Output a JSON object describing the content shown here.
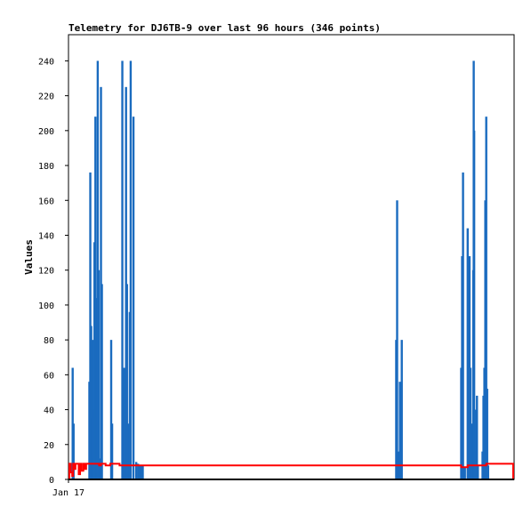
{
  "chart_data": {
    "type": "bar",
    "title": "Telemetry for DJ6TB-9 over last 96 hours (346 points)",
    "xlabel": "",
    "ylabel": "Values",
    "ylim": [
      0,
      255
    ],
    "xlim": [
      0,
      96
    ],
    "x_tick_labels": [
      "Jan 17"
    ],
    "y_ticks": [
      0,
      20,
      40,
      60,
      80,
      100,
      120,
      140,
      160,
      180,
      200,
      220,
      240
    ],
    "grid": false,
    "colors": {
      "bars": "#1a6bbf",
      "line": "#ff0000",
      "axis": "#000000"
    },
    "series": [
      {
        "type": "bar",
        "x": [
          0.9,
          1.1,
          4.5,
          4.7,
          4.9,
          5.1,
          5.2,
          5.3,
          5.4,
          5.6,
          5.8,
          6.0,
          6.1,
          6.3,
          6.5,
          6.6,
          6.8,
          7.0,
          7.2,
          9.2,
          9.4,
          11.6,
          11.8,
          12.0,
          12.2,
          12.4,
          12.6,
          12.8,
          13.0,
          13.2,
          13.4,
          14.0,
          14.6,
          15.0,
          15.2,
          15.4,
          15.6,
          15.8,
          16.0,
          70.6,
          70.8,
          71.0,
          71.4,
          71.8,
          84.6,
          84.8,
          85.0,
          85.4,
          86.0,
          86.2,
          86.4,
          86.6,
          86.8,
          87.0,
          87.2,
          87.3,
          87.4,
          87.6,
          87.8,
          88.0,
          88.2,
          89.2,
          89.4,
          89.6,
          89.8,
          90.0,
          90.2,
          90.4
        ],
        "values": [
          64,
          32,
          56,
          176,
          88,
          35,
          80,
          12,
          40,
          136,
          208,
          66,
          104,
          240,
          120,
          10,
          12,
          225,
          112,
          80,
          32,
          240,
          40,
          64,
          10,
          225,
          112,
          32,
          9,
          96,
          240,
          208,
          10,
          9,
          8,
          8,
          8,
          8,
          8,
          80,
          160,
          16,
          56,
          80,
          64,
          128,
          176,
          7,
          144,
          88,
          128,
          64,
          8,
          32,
          120,
          240,
          200,
          16,
          40,
          48,
          8,
          16,
          48,
          64,
          160,
          208,
          52,
          8
        ]
      },
      {
        "type": "line",
        "x": [
          0.0,
          0.2,
          0.5,
          0.8,
          1.0,
          1.2,
          1.5,
          2.2,
          2.5,
          2.8,
          3.2,
          3.5,
          3.8,
          4.2,
          5.8,
          6.2,
          6.6,
          7.0,
          7.4,
          8.0,
          9.0,
          10.0,
          11.0,
          12.0,
          20.0,
          40.0,
          60.0,
          84.0,
          84.6,
          86.0,
          88.0,
          90.0,
          94.0,
          95.8
        ],
        "values": [
          0,
          9,
          4,
          2,
          9,
          6,
          9,
          3,
          9,
          5,
          9,
          6,
          9,
          9,
          9,
          9,
          8,
          9,
          9,
          8,
          9,
          9,
          8,
          8,
          8,
          8,
          8,
          8,
          7,
          8,
          8,
          9,
          9,
          0
        ]
      }
    ]
  }
}
